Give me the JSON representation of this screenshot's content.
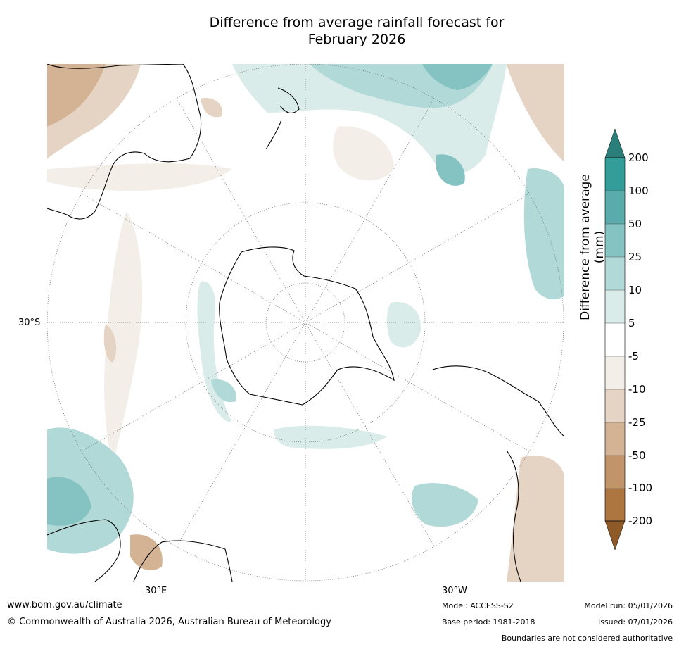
{
  "title": {
    "line1": "Difference from average rainfall forecast for",
    "line2": "February 2026"
  },
  "map": {
    "lat_label": "30°S",
    "lon_label_left": "30°E",
    "lon_label_right": "30°W"
  },
  "colorbar": {
    "title": "Difference from average (mm)",
    "ticks": [
      "200",
      "100",
      "50",
      "25",
      "10",
      "5",
      "-5",
      "-10",
      "-25",
      "-50",
      "-100",
      "-200"
    ],
    "colors": [
      "#2a7f7a",
      "#339d99",
      "#5aabab",
      "#85c2c2",
      "#b1d9d8",
      "#d9ecea",
      "#ffffff",
      "#f3eee8",
      "#e5d3c3",
      "#d3b394",
      "#c19469",
      "#ad7540",
      "#8e5a28"
    ]
  },
  "footer": {
    "website": "www.bom.gov.au/climate",
    "copyright": "© Commonwealth of Australia 2026, Australian Bureau of Meteorology",
    "model": "Model: ACCESS-S2",
    "base_period": "Base period: 1981-2018",
    "model_run": "Model run: 05/01/2026",
    "issued": "Issued: 07/01/2026",
    "disclaimer": "Boundaries are not considered authoritative"
  }
}
